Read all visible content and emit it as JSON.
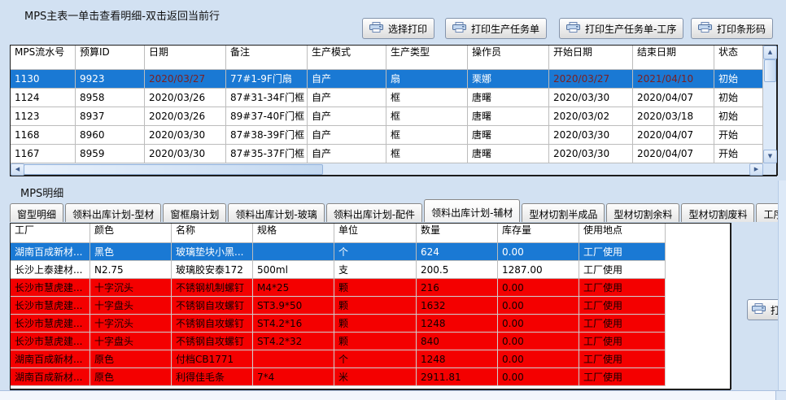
{
  "window": {
    "bg_color": "#d2e1f2"
  },
  "master": {
    "title": "MPS主表一单击查看明细-双击返回当前行",
    "buttons": [
      {
        "label": "选择打印",
        "icon": "printer-icon"
      },
      {
        "label": "打印生产任务单",
        "icon": "printer-icon"
      },
      {
        "label": "打印生产任务单-工序",
        "icon": "printer-icon"
      },
      {
        "label": "打印条形码",
        "icon": "printer-icon"
      }
    ],
    "table": {
      "columns": [
        "MPS流水号",
        "预算ID",
        "日期",
        "备注",
        "生产模式",
        "生产类型",
        "操作员",
        "开始日期",
        "结束日期",
        "状态"
      ],
      "rows": [
        {
          "state": "selected",
          "cells": [
            "1130",
            "9923",
            "2020/03/27",
            "77#1-9F门扇",
            "自产",
            "扇",
            "栗娜",
            "2020/03/27",
            "2021/04/10",
            "初始"
          ]
        },
        {
          "state": "",
          "cells": [
            "1124",
            "8958",
            "2020/03/26",
            "87#31-34F门框",
            "自产",
            "框",
            "唐曙",
            "2020/03/30",
            "2020/04/07",
            "初始"
          ]
        },
        {
          "state": "",
          "cells": [
            "1123",
            "8937",
            "2020/03/26",
            "89#37-40F门框",
            "自产",
            "框",
            "唐曙",
            "2020/03/02",
            "2020/03/18",
            "初始"
          ]
        },
        {
          "state": "",
          "cells": [
            "1168",
            "8960",
            "2020/03/30",
            "87#38-39F门框",
            "自产",
            "框",
            "唐曙",
            "2020/03/30",
            "2020/04/07",
            "开始"
          ]
        },
        {
          "state": "",
          "cells": [
            "1167",
            "8959",
            "2020/03/30",
            "87#35-37F门框",
            "自产",
            "框",
            "唐曙",
            "2020/03/30",
            "2020/04/07",
            "开始"
          ]
        }
      ]
    }
  },
  "detail": {
    "title": "MPS明细",
    "tabs": [
      {
        "label": "窗型明细",
        "active": false
      },
      {
        "label": "领料出库计划-型材",
        "active": false
      },
      {
        "label": "窗框扇计划",
        "active": false
      },
      {
        "label": "领料出库计划-玻璃",
        "active": false
      },
      {
        "label": "领料出库计划-配件",
        "active": false
      },
      {
        "label": "领料出库计划-辅材",
        "active": true
      },
      {
        "label": "型材切割半成品",
        "active": false
      },
      {
        "label": "型材切割余料",
        "active": false
      },
      {
        "label": "型材切割废料",
        "active": false
      },
      {
        "label": "工序",
        "active": false
      }
    ],
    "table": {
      "columns": [
        "工厂",
        "颜色",
        "名称",
        "规格",
        "单位",
        "数量",
        "库存量",
        "使用地点"
      ],
      "rows": [
        {
          "state": "selected",
          "cells": [
            "湖南百成新材...",
            "黑色",
            "玻璃垫块小黑...",
            "",
            "个",
            "624",
            "0.00",
            "工厂使用"
          ]
        },
        {
          "state": "",
          "cells": [
            "长沙上泰建材...",
            "N2.75",
            "玻璃胶安泰172",
            "500ml",
            "支",
            "200.5",
            "1287.00",
            "工厂使用"
          ]
        },
        {
          "state": "alert",
          "cells": [
            "长沙市慧虎建...",
            "十字沉头",
            "不锈钢机制螺钉",
            "M4*25",
            "颗",
            "216",
            "0.00",
            "工厂使用"
          ]
        },
        {
          "state": "alert",
          "cells": [
            "长沙市慧虎建...",
            "十字盘头",
            "不锈钢自攻螺钉",
            "ST3.9*50",
            "颗",
            "1632",
            "0.00",
            "工厂使用"
          ]
        },
        {
          "state": "alert",
          "cells": [
            "长沙市慧虎建...",
            "十字沉头",
            "不锈钢自攻螺钉",
            "ST4.2*16",
            "颗",
            "1248",
            "0.00",
            "工厂使用"
          ]
        },
        {
          "state": "alert",
          "cells": [
            "长沙市慧虎建...",
            "十字盘头",
            "不锈钢自攻螺钉",
            "ST4.2*32",
            "颗",
            "840",
            "0.00",
            "工厂使用"
          ]
        },
        {
          "state": "alert",
          "cells": [
            "湖南百成新材...",
            "原色",
            "付档CB1771",
            "",
            "个",
            "1248",
            "0.00",
            "工厂使用"
          ]
        },
        {
          "state": "alert",
          "cells": [
            "湖南百成新材...",
            "原色",
            "利得佳毛条",
            "7*4",
            "米",
            "2911.81",
            "0.00",
            "工厂使用"
          ]
        }
      ]
    },
    "print_button": {
      "label": "打印",
      "icon": "printer-icon"
    }
  },
  "colors": {
    "selected_row": "#1a79d4",
    "alert_row": "#f40000",
    "selected_date_text": "#7d2020",
    "window_bg": "#d2e1f2"
  }
}
